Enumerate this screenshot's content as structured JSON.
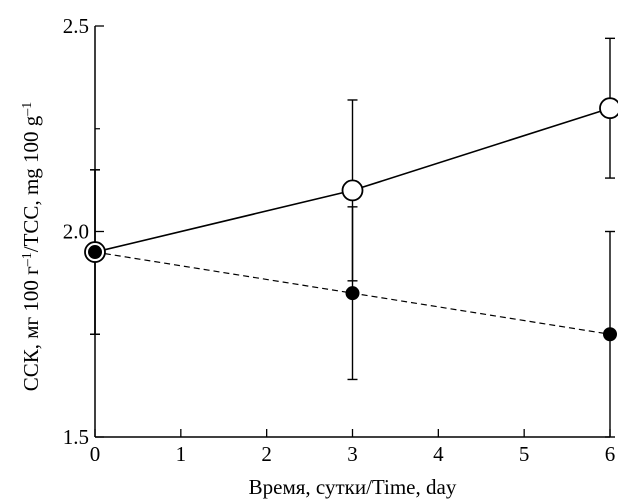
{
  "chart_data": {
    "type": "line",
    "title": "",
    "xlabel": "Время, сутки/Time, day",
    "ylabel_parts": {
      "prefix": "ССК, мг 100 г",
      "sup1": "–1",
      "middle": "/TCC, mg 100 g",
      "sup2": "–1"
    },
    "xlim": [
      0,
      6
    ],
    "ylim": [
      1.5,
      2.5
    ],
    "xticks": [
      {
        "value": 0,
        "label": "0"
      },
      {
        "value": 1,
        "label": "1"
      },
      {
        "value": 2,
        "label": "2"
      },
      {
        "value": 3,
        "label": "3"
      },
      {
        "value": 4,
        "label": "4"
      },
      {
        "value": 5,
        "label": "5"
      },
      {
        "value": 6,
        "label": "6"
      }
    ],
    "yticks": [
      {
        "value": 1.5,
        "label": "1.5"
      },
      {
        "value": 2.0,
        "label": "2.0"
      },
      {
        "value": 2.5,
        "label": "2.5"
      }
    ],
    "grid": false,
    "legend": "none",
    "series": [
      {
        "marker": "open-circle",
        "line_style": "solid",
        "color": "#000000",
        "points": [
          {
            "x": 0,
            "y": 1.95,
            "err_low": 1.75,
            "err_high": 2.15
          },
          {
            "x": 3,
            "y": 2.1,
            "err_low": 1.88,
            "err_high": 2.32
          },
          {
            "x": 6,
            "y": 2.3,
            "err_low": 2.13,
            "err_high": 2.47
          }
        ]
      },
      {
        "marker": "filled-circle",
        "line_style": "dashed",
        "color": "#000000",
        "points": [
          {
            "x": 0,
            "y": 1.95,
            "err_low": 1.75,
            "err_high": 2.15
          },
          {
            "x": 3,
            "y": 1.85,
            "err_low": 1.64,
            "err_high": 2.06
          },
          {
            "x": 6,
            "y": 1.75,
            "err_low": 1.5,
            "err_high": 2.0
          }
        ]
      }
    ]
  }
}
